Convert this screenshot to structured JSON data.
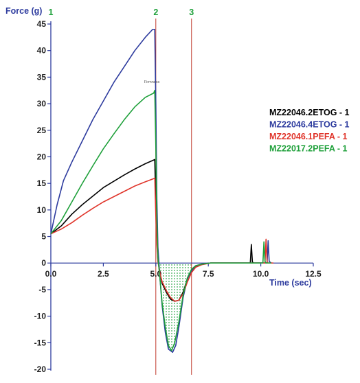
{
  "chart_data": {
    "type": "line",
    "ylabel": "Force (g)",
    "xlabel": "Time (sec)",
    "xlim": [
      0,
      12.5
    ],
    "ylim": [
      -20,
      45
    ],
    "x_ticks": [
      0,
      2.5,
      5,
      7.5,
      10,
      12.5
    ],
    "x_tick_labels": [
      "0.0",
      "2.5",
      "5.0",
      "7.5",
      "10.0",
      "12.5"
    ],
    "y_ticks": [
      45,
      40,
      35,
      30,
      25,
      20,
      15,
      10,
      5,
      0,
      -5,
      -10,
      -15,
      -20
    ],
    "y_tick_labels": [
      "45",
      "40",
      "35",
      "30",
      "25",
      "20",
      "15",
      "10",
      "5",
      "0",
      "-5",
      "-10",
      "-15",
      "-20"
    ],
    "grid": false,
    "legend_position": "right",
    "markers": [
      {
        "label": "1",
        "x": 0,
        "color": "#1ea03a",
        "line": false
      },
      {
        "label": "2",
        "x": 5.0,
        "color": "#c0392b",
        "label_color": "#1ea03a",
        "line": true
      },
      {
        "label": "3",
        "x": 6.7,
        "color": "#c0392b",
        "label_color": "#1ea03a",
        "line": true
      }
    ],
    "peak_annotation": {
      "text": "Firmness",
      "x": 4.9,
      "y": 33.5
    },
    "shaded_region": {
      "x_from": 5.0,
      "x_to": 6.7,
      "fill": "#1ea03a",
      "pattern": "dots"
    },
    "series": [
      {
        "name": "MZ22046.2ETOG - 1",
        "color": "#000000",
        "x": [
          0,
          0.5,
          1.0,
          1.5,
          2.0,
          2.5,
          3.0,
          3.5,
          4.0,
          4.5,
          4.9,
          4.95,
          5.0,
          5.05,
          5.1,
          5.2,
          5.3,
          5.5,
          5.7,
          5.9,
          6.1,
          6.3,
          6.5,
          6.7,
          6.9,
          7.2,
          7.6,
          8.0,
          9.0,
          9.5,
          9.55,
          9.6,
          9.65,
          9.7,
          10.3
        ],
        "y": [
          5.5,
          7.0,
          9.2,
          11.0,
          12.6,
          14.2,
          15.4,
          16.6,
          17.7,
          18.7,
          19.4,
          19.5,
          11.0,
          4.5,
          0.5,
          -2.0,
          -3.8,
          -5.5,
          -6.8,
          -7.2,
          -7.0,
          -5.5,
          -3.0,
          -1.2,
          -0.5,
          -0.2,
          0,
          0,
          0,
          0,
          3.5,
          0.2,
          0,
          0,
          0
        ]
      },
      {
        "name": "MZ22046.4ETOG - 1",
        "color": "#2d3b9e",
        "x": [
          0,
          0.3,
          0.6,
          1.0,
          1.5,
          2.0,
          2.5,
          3.0,
          3.5,
          4.0,
          4.5,
          4.85,
          4.95,
          5.0,
          5.05,
          5.1,
          5.2,
          5.3,
          5.45,
          5.6,
          5.8,
          5.95,
          6.1,
          6.3,
          6.5,
          6.7,
          6.9,
          7.2,
          7.6,
          8.0,
          9.0,
          10.0,
          10.3,
          10.35,
          10.4,
          10.5
        ],
        "y": [
          5.5,
          11.0,
          15.5,
          19.0,
          23.0,
          27.0,
          30.5,
          34.0,
          37.0,
          40.0,
          42.5,
          44.0,
          44.0,
          30.0,
          12.0,
          3.0,
          -3.0,
          -8.0,
          -13.0,
          -16.2,
          -16.8,
          -15.5,
          -12.0,
          -6.5,
          -3.0,
          -1.5,
          -0.6,
          -0.2,
          0,
          0,
          0,
          0,
          0,
          4.2,
          0.3,
          0
        ]
      },
      {
        "name": "MZ22046.1PEFA - 1",
        "color": "#e0352b",
        "x": [
          0,
          0.5,
          1.0,
          1.5,
          2.0,
          2.5,
          3.0,
          3.5,
          4.0,
          4.5,
          4.9,
          4.95,
          5.0,
          5.05,
          5.1,
          5.2,
          5.3,
          5.5,
          5.7,
          5.9,
          6.1,
          6.3,
          6.5,
          6.7,
          6.9,
          7.2,
          7.6,
          8.0,
          9.5,
          10.2,
          10.25,
          10.3,
          10.35,
          10.4,
          10.6
        ],
        "y": [
          5.5,
          6.4,
          7.6,
          9.0,
          10.3,
          11.5,
          12.5,
          13.5,
          14.5,
          15.3,
          15.9,
          16.0,
          9.0,
          3.5,
          0.3,
          -2.0,
          -3.5,
          -5.2,
          -6.5,
          -7.2,
          -7.0,
          -5.8,
          -3.6,
          -1.8,
          -0.8,
          -0.3,
          0,
          0,
          0,
          0,
          4.5,
          0.2,
          0,
          0,
          0
        ]
      },
      {
        "name": "MZ22017.2PEFA - 1",
        "color": "#1ea03a",
        "x": [
          0,
          0.5,
          1.0,
          1.5,
          2.0,
          2.5,
          3.0,
          3.5,
          4.0,
          4.5,
          4.9,
          4.95,
          5.0,
          5.05,
          5.1,
          5.2,
          5.3,
          5.45,
          5.6,
          5.75,
          5.9,
          6.1,
          6.3,
          6.5,
          6.7,
          6.9,
          7.2,
          7.6,
          8.0,
          9.5,
          10.1,
          10.15,
          10.2,
          10.25,
          10.3,
          10.5
        ],
        "y": [
          5.5,
          8.0,
          11.5,
          15.0,
          18.3,
          21.5,
          24.3,
          27.0,
          29.4,
          31.2,
          32.0,
          32.5,
          22.0,
          8.0,
          1.0,
          -3.0,
          -7.5,
          -12.0,
          -15.5,
          -16.5,
          -15.0,
          -11.0,
          -6.0,
          -2.8,
          -1.2,
          -0.5,
          -0.2,
          0,
          0,
          0,
          0,
          4.0,
          0.3,
          0,
          0,
          0
        ]
      }
    ]
  }
}
